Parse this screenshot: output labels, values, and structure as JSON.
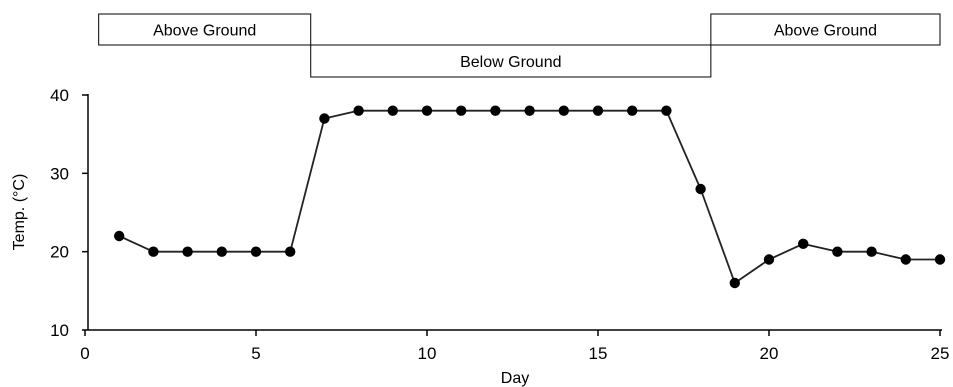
{
  "chart_data": {
    "type": "line",
    "title": "",
    "xlabel": "Day",
    "ylabel": "Temp. (°C)",
    "xlim": [
      0,
      25
    ],
    "ylim": [
      10,
      40
    ],
    "x_ticks": [
      0,
      5,
      10,
      15,
      20,
      25
    ],
    "y_ticks": [
      10,
      20,
      30,
      40
    ],
    "grid": false,
    "series": [
      {
        "x": [
          1,
          2,
          3,
          4,
          5,
          6,
          7,
          8,
          9,
          10,
          11,
          12,
          13,
          14,
          15,
          16,
          17,
          18,
          19,
          20,
          21,
          22,
          23,
          24,
          25
        ],
        "y": [
          22,
          20,
          20,
          20,
          20,
          20,
          37,
          38,
          38,
          38,
          38,
          38,
          38,
          38,
          38,
          38,
          38,
          28,
          16,
          19,
          21,
          20,
          20,
          19,
          19
        ]
      }
    ],
    "phases": [
      {
        "label": "Above Ground",
        "x_start": 0.4,
        "x_end": 6.6,
        "row": "upper"
      },
      {
        "label": "Below Ground",
        "x_start": 6.6,
        "x_end": 18.3,
        "row": "lower"
      },
      {
        "label": "Above Ground",
        "x_start": 18.3,
        "x_end": 25.0,
        "row": "upper"
      }
    ],
    "colors": {
      "line": "#222222",
      "marker": "#000000",
      "axis": "#000000"
    }
  }
}
